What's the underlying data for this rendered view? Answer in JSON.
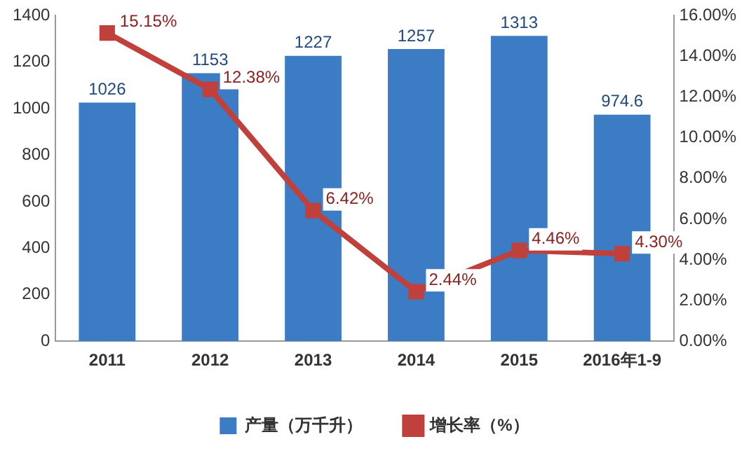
{
  "chart_data": {
    "type": "bar",
    "categories": [
      "2011",
      "2012",
      "2013",
      "2014",
      "2015",
      "2016年1-9"
    ],
    "series": [
      {
        "name": "产量（万千升）",
        "color": "#3b7cc4",
        "values": [
          1026,
          1153,
          1227,
          1257,
          1313,
          974.6
        ],
        "value_labels": [
          "1026",
          "1153",
          "1227",
          "1257",
          "1313",
          "974.6"
        ]
      },
      {
        "name": "增长率（%）",
        "type": "line",
        "axis": "y2",
        "color": "#c0403c",
        "values": [
          15.15,
          12.38,
          6.42,
          2.44,
          4.46,
          4.3
        ],
        "value_labels": [
          "15.15%",
          "12.38%",
          "6.42%",
          "2.44%",
          "4.46%",
          "4.30%"
        ],
        "marker": "square"
      }
    ],
    "ylim": [
      0,
      1400
    ],
    "yticks": [
      0,
      200,
      400,
      600,
      800,
      1000,
      1200,
      1400
    ],
    "y2lim": [
      0,
      16
    ],
    "y2ticks": [
      {
        "value": 0,
        "label": "0.00%"
      },
      {
        "value": 2,
        "label": "2.00%"
      },
      {
        "value": 4,
        "label": "4.00%"
      },
      {
        "value": 6,
        "label": "6.00%"
      },
      {
        "value": 8,
        "label": "8.00%"
      },
      {
        "value": 10,
        "label": "10.00%"
      },
      {
        "value": 12,
        "label": "12.00%"
      },
      {
        "value": 14,
        "label": "14.00%"
      },
      {
        "value": 16,
        "label": "16.00%"
      }
    ],
    "legend": "bottom",
    "grid": false
  }
}
